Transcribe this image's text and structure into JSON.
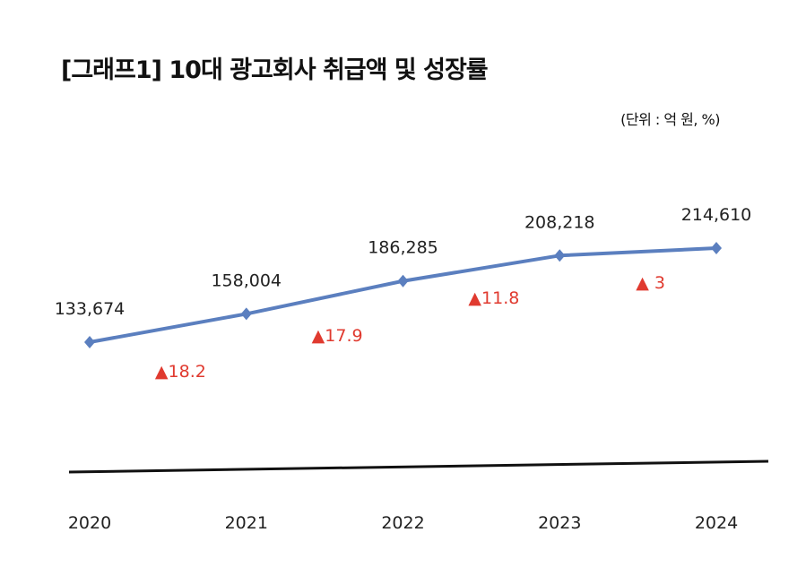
{
  "title": "[그래프1] 10대 광고회사 취급액 및 성장률",
  "unit_note": "(단위 : 억 원, %)",
  "colors": {
    "line": "#5b7fbf",
    "growth": "#e03a2f",
    "axis": "#111111"
  },
  "chart_data": {
    "type": "line",
    "title": "[그래프1] 10대 광고회사 취급액 및 성장률",
    "categories": [
      "2020",
      "2021",
      "2022",
      "2023",
      "2024"
    ],
    "values": [
      133674,
      158004,
      186285,
      208218,
      214610
    ],
    "value_labels": [
      "133,674",
      "158,004",
      "186,285",
      "208,218",
      "214,610"
    ],
    "growth_rates": [
      18.2,
      17.9,
      11.8,
      3
    ],
    "growth_labels": [
      "▲18.2",
      "▲17.9",
      "▲11.8",
      "▲ 3"
    ],
    "marker": "diamond",
    "grid": false,
    "legend": "none"
  }
}
